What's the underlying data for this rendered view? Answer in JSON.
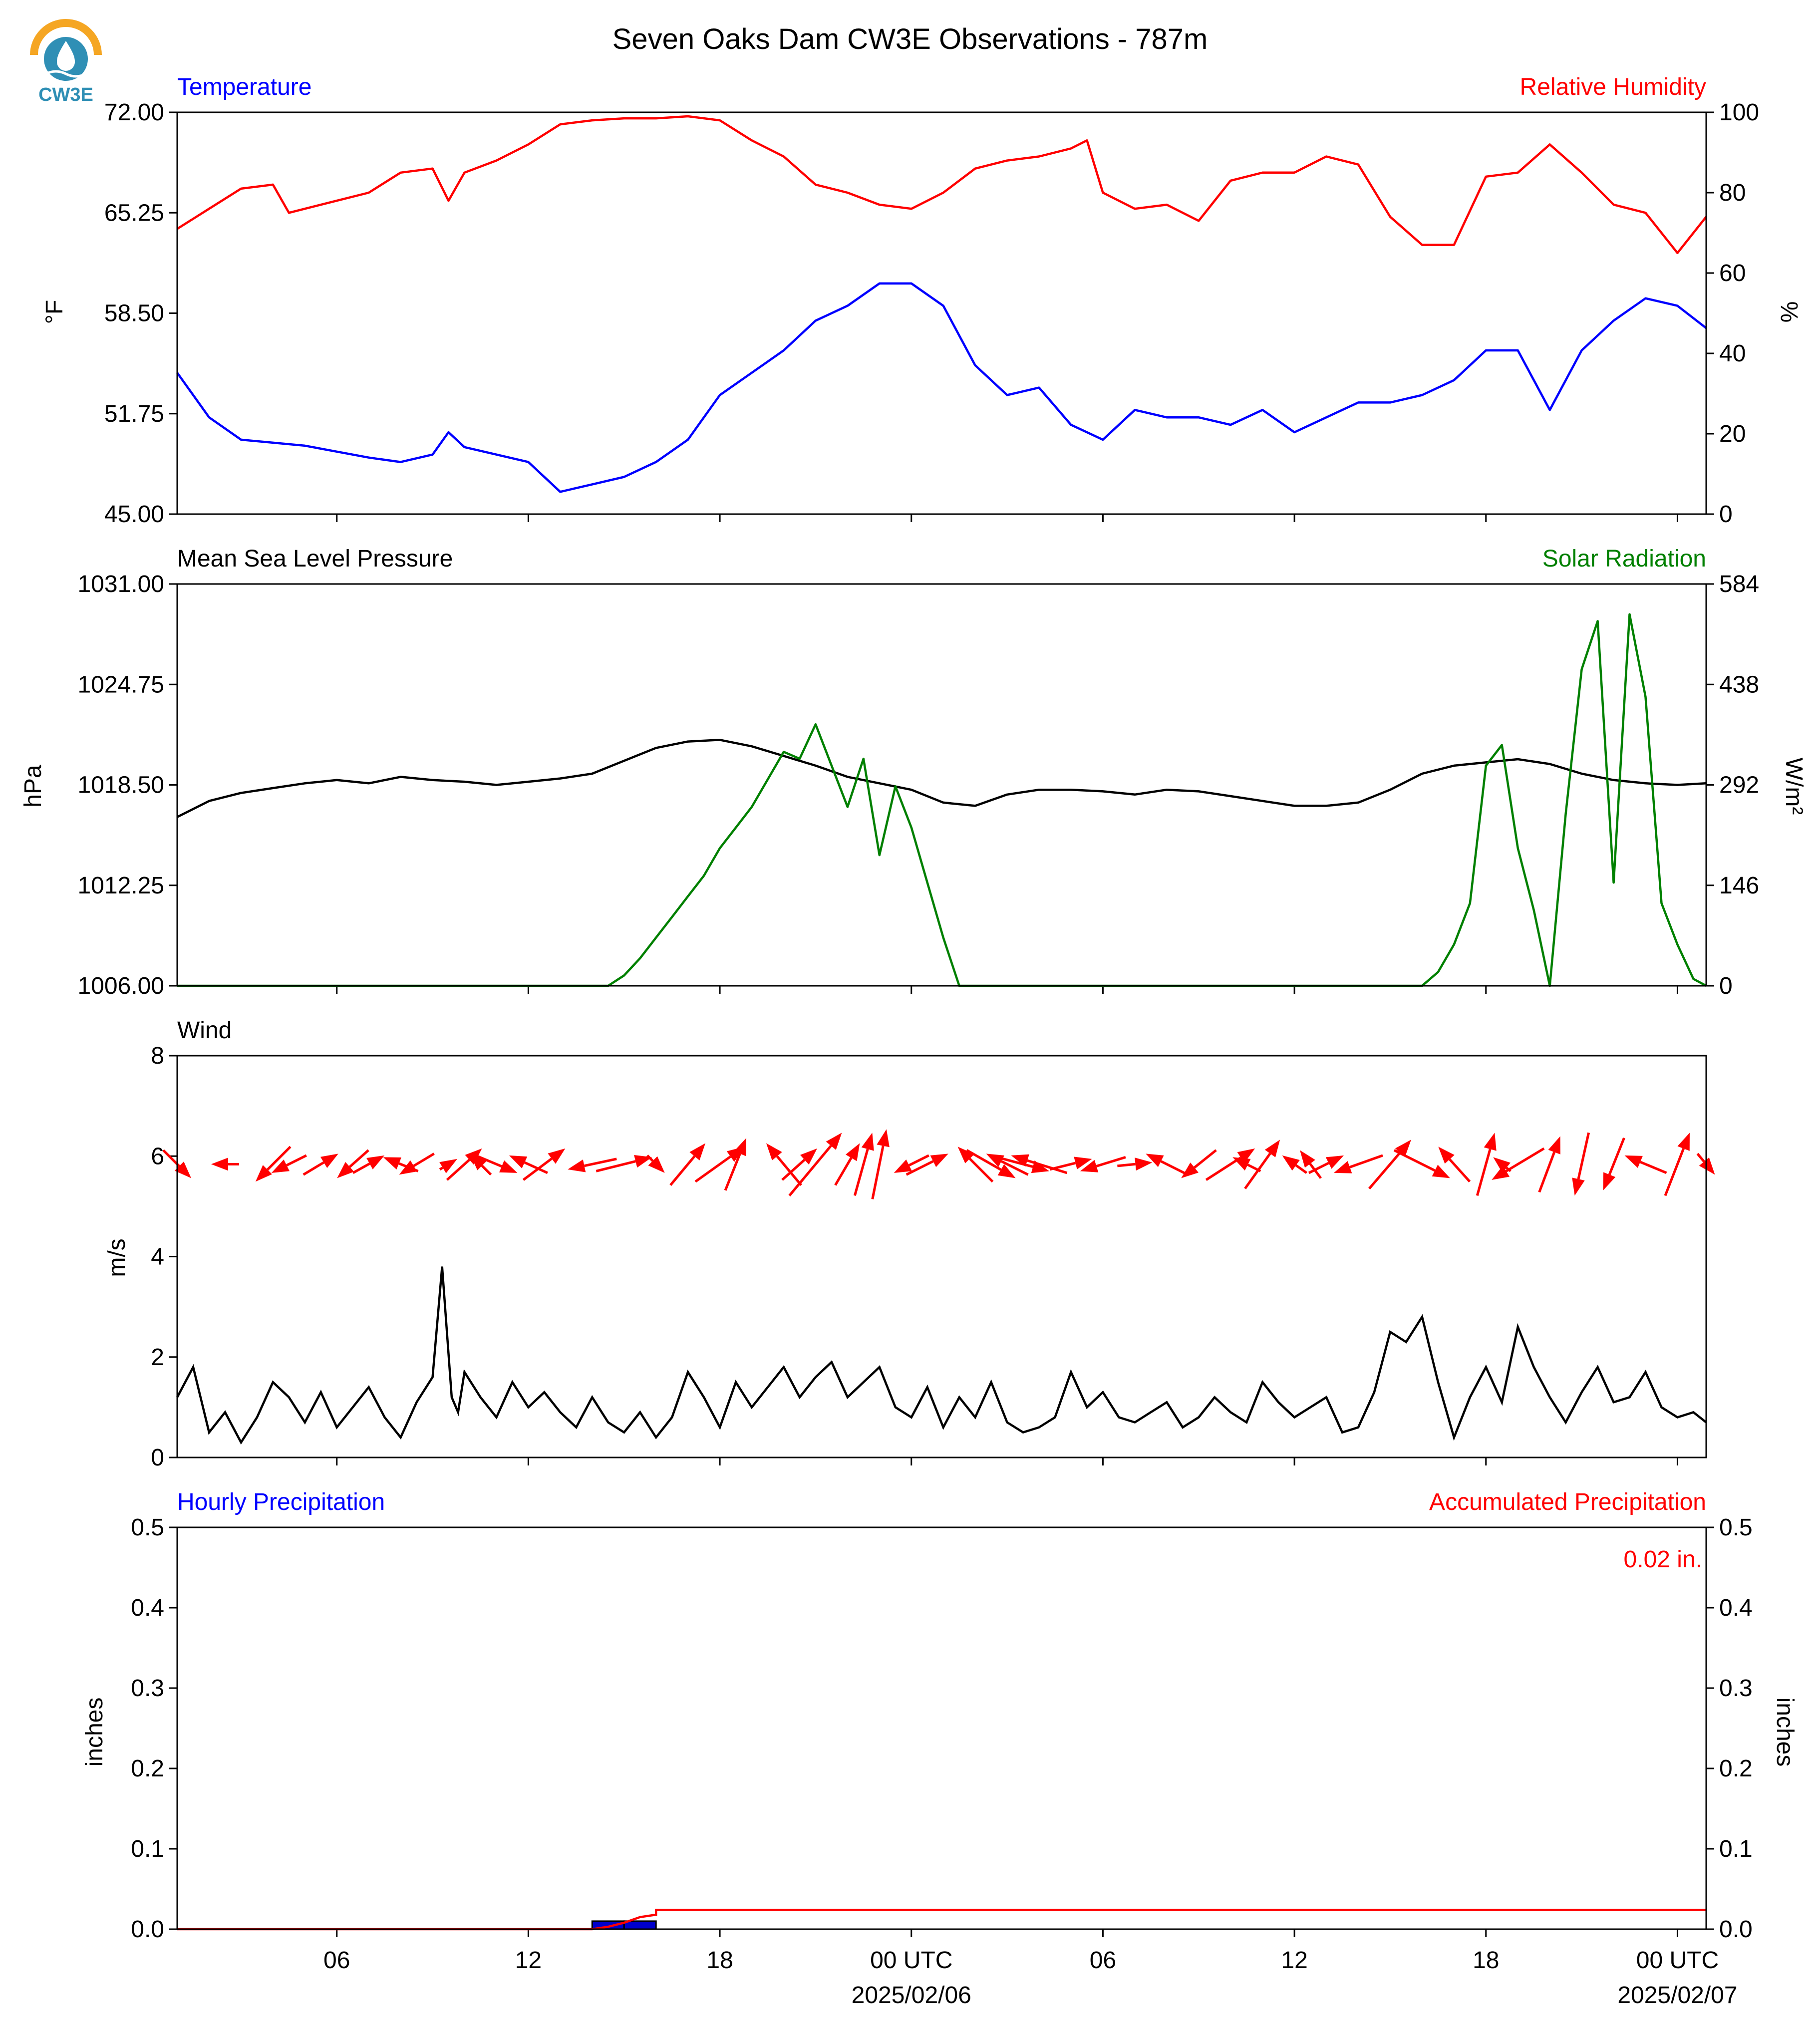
{
  "logo": {
    "text": "CW3E",
    "colors": {
      "sun": "#f5a623",
      "drop": "#2f8fb5",
      "text": "#2f8fb5"
    }
  },
  "title": "Seven Oaks Dam CW3E Observations - 787m",
  "time_axis": {
    "ticks": [
      "06",
      "12",
      "18",
      "00 UTC",
      "06",
      "12",
      "18",
      "00 UTC"
    ],
    "tick_hours": [
      6,
      12,
      18,
      24,
      30,
      36,
      42,
      48
    ],
    "date_labels": [
      {
        "hour": 24,
        "text": "2025/02/06"
      },
      {
        "hour": 48,
        "text": "2025/02/07"
      }
    ],
    "range_hours": [
      1,
      48.9
    ]
  },
  "chart_data": [
    {
      "type": "line",
      "left_title": "Temperature",
      "right_title": "Relative Humidity",
      "ylabel_left": "°F",
      "ylabel_right": "%",
      "ylim_left": [
        45,
        72
      ],
      "ylim_right": [
        0,
        100
      ],
      "left_ticks": [
        "45.00",
        "51.75",
        "58.50",
        "65.25",
        "72.00"
      ],
      "right_ticks": [
        "0",
        "20",
        "40",
        "60",
        "80",
        "100"
      ],
      "colors": {
        "left": "#0000ff",
        "right": "#ff0000"
      },
      "series": [
        {
          "axis": "left",
          "x": [
            1,
            2,
            3,
            4,
            5,
            6,
            7,
            8,
            9,
            9.5,
            10,
            11,
            12,
            13,
            14,
            15,
            16,
            17,
            18,
            19,
            20,
            21,
            22,
            23,
            24,
            25,
            26,
            27,
            28,
            29,
            30,
            31,
            32,
            33,
            34,
            35,
            36,
            37,
            38,
            39,
            40,
            41,
            42,
            43,
            44,
            45,
            46,
            47,
            48,
            48.9
          ],
          "values": [
            54.5,
            51.5,
            50,
            49.8,
            49.6,
            49.2,
            48.8,
            48.5,
            49,
            50.5,
            49.5,
            49,
            48.5,
            46.5,
            47,
            47.5,
            48.5,
            50,
            53,
            54.5,
            56,
            58,
            59,
            60.5,
            60.5,
            59,
            55,
            53,
            53.5,
            51,
            50,
            52,
            51.5,
            51.5,
            51,
            52,
            50.5,
            51.5,
            52.5,
            52.5,
            53,
            54,
            56,
            56,
            52,
            56,
            58,
            59.5,
            59,
            57.5
          ]
        },
        {
          "axis": "right",
          "x": [
            1,
            2,
            3,
            4,
            4.5,
            5,
            6,
            7,
            8,
            9,
            9.5,
            10,
            11,
            12,
            13,
            14,
            15,
            16,
            17,
            18,
            19,
            20,
            21,
            22,
            23,
            24,
            25,
            26,
            27,
            28,
            29,
            29.5,
            30,
            31,
            32,
            33,
            34,
            35,
            36,
            37,
            38,
            39,
            40,
            41,
            42,
            43,
            44,
            45,
            46,
            47,
            48,
            48.9
          ],
          "values": [
            71,
            76,
            81,
            82,
            75,
            76,
            78,
            80,
            85,
            86,
            78,
            85,
            88,
            92,
            97,
            98,
            98.5,
            98.5,
            99,
            98,
            93,
            89,
            82,
            80,
            77,
            76,
            80,
            86,
            88,
            89,
            91,
            93,
            80,
            76,
            77,
            73,
            83,
            85,
            85,
            89,
            87,
            74,
            67,
            67,
            84,
            85,
            92,
            85,
            77,
            75,
            65,
            74
          ]
        }
      ]
    },
    {
      "type": "line",
      "left_title": "Mean Sea Level Pressure",
      "right_title": "Solar Radiation",
      "ylabel_left": "hPa",
      "ylabel_right": "W/m²",
      "ylim_left": [
        1006,
        1031
      ],
      "ylim_right": [
        0,
        584
      ],
      "left_ticks": [
        "1006.00",
        "1012.25",
        "1018.50",
        "1024.75",
        "1031.00"
      ],
      "right_ticks": [
        "0",
        "146",
        "292",
        "438",
        "584"
      ],
      "colors": {
        "left": "#000000",
        "right": "#008000"
      },
      "series": [
        {
          "axis": "left",
          "x": [
            1,
            2,
            3,
            4,
            5,
            6,
            7,
            8,
            9,
            10,
            11,
            12,
            13,
            14,
            15,
            16,
            17,
            18,
            19,
            20,
            21,
            22,
            23,
            24,
            25,
            26,
            27,
            28,
            29,
            30,
            31,
            32,
            33,
            34,
            35,
            36,
            37,
            38,
            39,
            40,
            41,
            42,
            43,
            44,
            45,
            46,
            47,
            48,
            48.9
          ],
          "values": [
            1016.5,
            1017.5,
            1018,
            1018.3,
            1018.6,
            1018.8,
            1018.6,
            1019,
            1018.8,
            1018.7,
            1018.5,
            1018.7,
            1018.9,
            1019.2,
            1020,
            1020.8,
            1021.2,
            1021.3,
            1020.9,
            1020.3,
            1019.7,
            1019,
            1018.6,
            1018.2,
            1017.4,
            1017.2,
            1017.9,
            1018.2,
            1018.2,
            1018.1,
            1017.9,
            1018.2,
            1018.1,
            1017.8,
            1017.5,
            1017.2,
            1017.2,
            1017.4,
            1018.2,
            1019.2,
            1019.7,
            1019.9,
            1020.1,
            1019.8,
            1019.2,
            1018.8,
            1018.6,
            1018.5,
            1018.6
          ]
        },
        {
          "axis": "right",
          "x": [
            1,
            14.5,
            15,
            15.5,
            16,
            16.5,
            17,
            17.5,
            18,
            18.5,
            19,
            19.5,
            20,
            20.5,
            21,
            21.5,
            22,
            22.5,
            23,
            23.5,
            24,
            24.5,
            25,
            25.5,
            40,
            40.5,
            41,
            41.5,
            42,
            42.5,
            43,
            43.5,
            44,
            44.5,
            45,
            45.5,
            46,
            46.5,
            47,
            47.5,
            48,
            48.5,
            48.9
          ],
          "values": [
            0,
            0,
            15,
            40,
            70,
            100,
            130,
            160,
            200,
            230,
            260,
            300,
            340,
            330,
            380,
            320,
            260,
            330,
            190,
            290,
            230,
            150,
            70,
            0,
            0,
            20,
            60,
            120,
            320,
            350,
            200,
            110,
            0,
            250,
            460,
            530,
            150,
            540,
            420,
            120,
            60,
            10,
            0
          ]
        }
      ]
    },
    {
      "type": "line+vector",
      "left_title": "Wind",
      "ylabel_left": "m/s",
      "ylim_left": [
        0,
        8
      ],
      "left_ticks": [
        "0",
        "2",
        "4",
        "6",
        "8"
      ],
      "colors": {
        "speed": "#000000",
        "vectors": "#ff0000"
      },
      "series": [
        {
          "name": "",
          "x": [
            1,
            1.5,
            2,
            2.5,
            3,
            3.5,
            4,
            4.5,
            5,
            5.5,
            6,
            6.5,
            7,
            7.5,
            8,
            8.5,
            9,
            9.3,
            9.6,
            9.8,
            10,
            10.5,
            11,
            11.5,
            12,
            12.5,
            13,
            13.5,
            14,
            14.5,
            15,
            15.5,
            16,
            16.5,
            17,
            17.5,
            18,
            18.5,
            19,
            19.5,
            20,
            20.5,
            21,
            21.5,
            22,
            22.5,
            23,
            23.5,
            24,
            24.5,
            25,
            25.5,
            26,
            26.5,
            27,
            27.5,
            28,
            28.5,
            29,
            29.5,
            30,
            30.5,
            31,
            31.5,
            32,
            32.5,
            33,
            33.5,
            34,
            34.5,
            35,
            35.5,
            36,
            36.5,
            37,
            37.5,
            38,
            38.5,
            39,
            39.5,
            40,
            40.5,
            41,
            41.5,
            42,
            42.5,
            43,
            43.5,
            44,
            44.5,
            45,
            45.5,
            46,
            46.5,
            47,
            47.5,
            48,
            48.5,
            48.9
          ],
          "values": [
            1.2,
            1.8,
            0.5,
            0.9,
            0.3,
            0.8,
            1.5,
            1.2,
            0.7,
            1.3,
            0.6,
            1,
            1.4,
            0.8,
            0.4,
            1.1,
            1.6,
            3.8,
            1.2,
            0.9,
            1.7,
            1.2,
            0.8,
            1.5,
            1,
            1.3,
            0.9,
            0.6,
            1.2,
            0.7,
            0.5,
            0.9,
            0.4,
            0.8,
            1.7,
            1.2,
            0.6,
            1.5,
            1,
            1.4,
            1.8,
            1.2,
            1.6,
            1.9,
            1.2,
            1.5,
            1.8,
            1,
            0.8,
            1.4,
            0.6,
            1.2,
            0.8,
            1.5,
            0.7,
            0.5,
            0.6,
            0.8,
            1.7,
            1,
            1.3,
            0.8,
            0.7,
            0.9,
            1.1,
            0.6,
            0.8,
            1.2,
            0.9,
            0.7,
            1.5,
            1.1,
            0.8,
            1,
            1.2,
            0.5,
            0.6,
            1.3,
            2.5,
            2.3,
            2.8,
            1.5,
            0.4,
            1.2,
            1.8,
            1.1,
            2.6,
            1.8,
            1.2,
            0.7,
            1.3,
            1.8,
            1.1,
            1.2,
            1.7,
            1,
            0.8,
            0.9,
            0.7
          ]
        }
      ],
      "vectors": {
        "x": [
          1,
          2.5,
          4,
          4.5,
          5.5,
          6.5,
          7,
          8,
          8.5,
          9.5,
          10,
          10.5,
          11,
          12,
          12.5,
          14,
          15,
          16,
          17,
          18,
          18.5,
          20,
          20.5,
          21,
          22,
          22.5,
          23,
          24,
          24.5,
          26,
          26.5,
          27,
          27.5,
          28,
          29,
          30,
          31,
          32,
          33,
          34,
          34.5,
          35,
          36,
          36.5,
          37,
          38,
          39,
          40,
          41,
          42,
          42.5,
          43,
          44,
          45,
          46,
          47,
          48,
          48.9
        ],
        "u": [
          0.8,
          -0.8,
          -1,
          -1,
          1,
          -0.9,
          0.9,
          -1,
          -1,
          0.5,
          1,
          -0.6,
          1.2,
          -1.1,
          1.2,
          -1.4,
          1.6,
          0.5,
          1,
          1.4,
          0.6,
          -1,
          1,
          1.5,
          0.7,
          0.5,
          0.4,
          -1,
          1.2,
          -1,
          1.4,
          -1.2,
          1.5,
          -1.6,
          1.2,
          -1.3,
          1,
          -1.2,
          -1,
          1.4,
          -0.8,
          1,
          -0.7,
          -0.6,
          1,
          -1.4,
          1.2,
          1.6,
          -0.9,
          0.5,
          -0.5,
          -1.5,
          0.6,
          -0.4,
          -0.6,
          -1.2,
          0.7,
          0.5
        ],
        "v": [
          -0.8,
          0,
          -1,
          -0.5,
          0.6,
          -0.8,
          0.5,
          0.4,
          -0.6,
          0.3,
          0.9,
          0.6,
          -0.5,
          0.5,
          0.9,
          -0.3,
          0.4,
          -0.5,
          1.2,
          1,
          1.5,
          1.2,
          0.9,
          1.8,
          1.2,
          1.8,
          2,
          -0.5,
          0.6,
          1,
          -0.8,
          0.6,
          -0.4,
          0.5,
          0.3,
          -0.4,
          0.1,
          0.6,
          -0.8,
          0.9,
          0.4,
          1.4,
          0.5,
          0.8,
          0.5,
          -0.5,
          1.4,
          -0.8,
          1,
          1.8,
          0.4,
          -0.9,
          1.6,
          -1.8,
          -1.5,
          0.5,
          1.8,
          -0.6
        ]
      }
    },
    {
      "type": "bar+line",
      "left_title": "Hourly Precipitation",
      "right_title": "Accumulated Precipitation",
      "ylabel_left": "inches",
      "ylabel_right": "inches",
      "ylim_left": [
        0,
        0.5
      ],
      "ylim_right": [
        0,
        0.5
      ],
      "left_ticks": [
        "0.0",
        "0.1",
        "0.2",
        "0.3",
        "0.4",
        "0.5"
      ],
      "right_ticks": [
        "0.0",
        "0.1",
        "0.2",
        "0.3",
        "0.4",
        "0.5"
      ],
      "total_label": "0.02 in.",
      "colors": {
        "bars": "#0000cc",
        "accum": "#ff0000"
      },
      "bars": {
        "x": [
          14,
          15
        ],
        "values": [
          0.01,
          0.01
        ]
      },
      "accum": {
        "x": [
          1,
          14,
          14.5,
          15,
          15.5,
          16,
          16,
          48.9
        ],
        "values": [
          0,
          0,
          0.003,
          0.008,
          0.015,
          0.018,
          0.024,
          0.024
        ]
      }
    }
  ]
}
